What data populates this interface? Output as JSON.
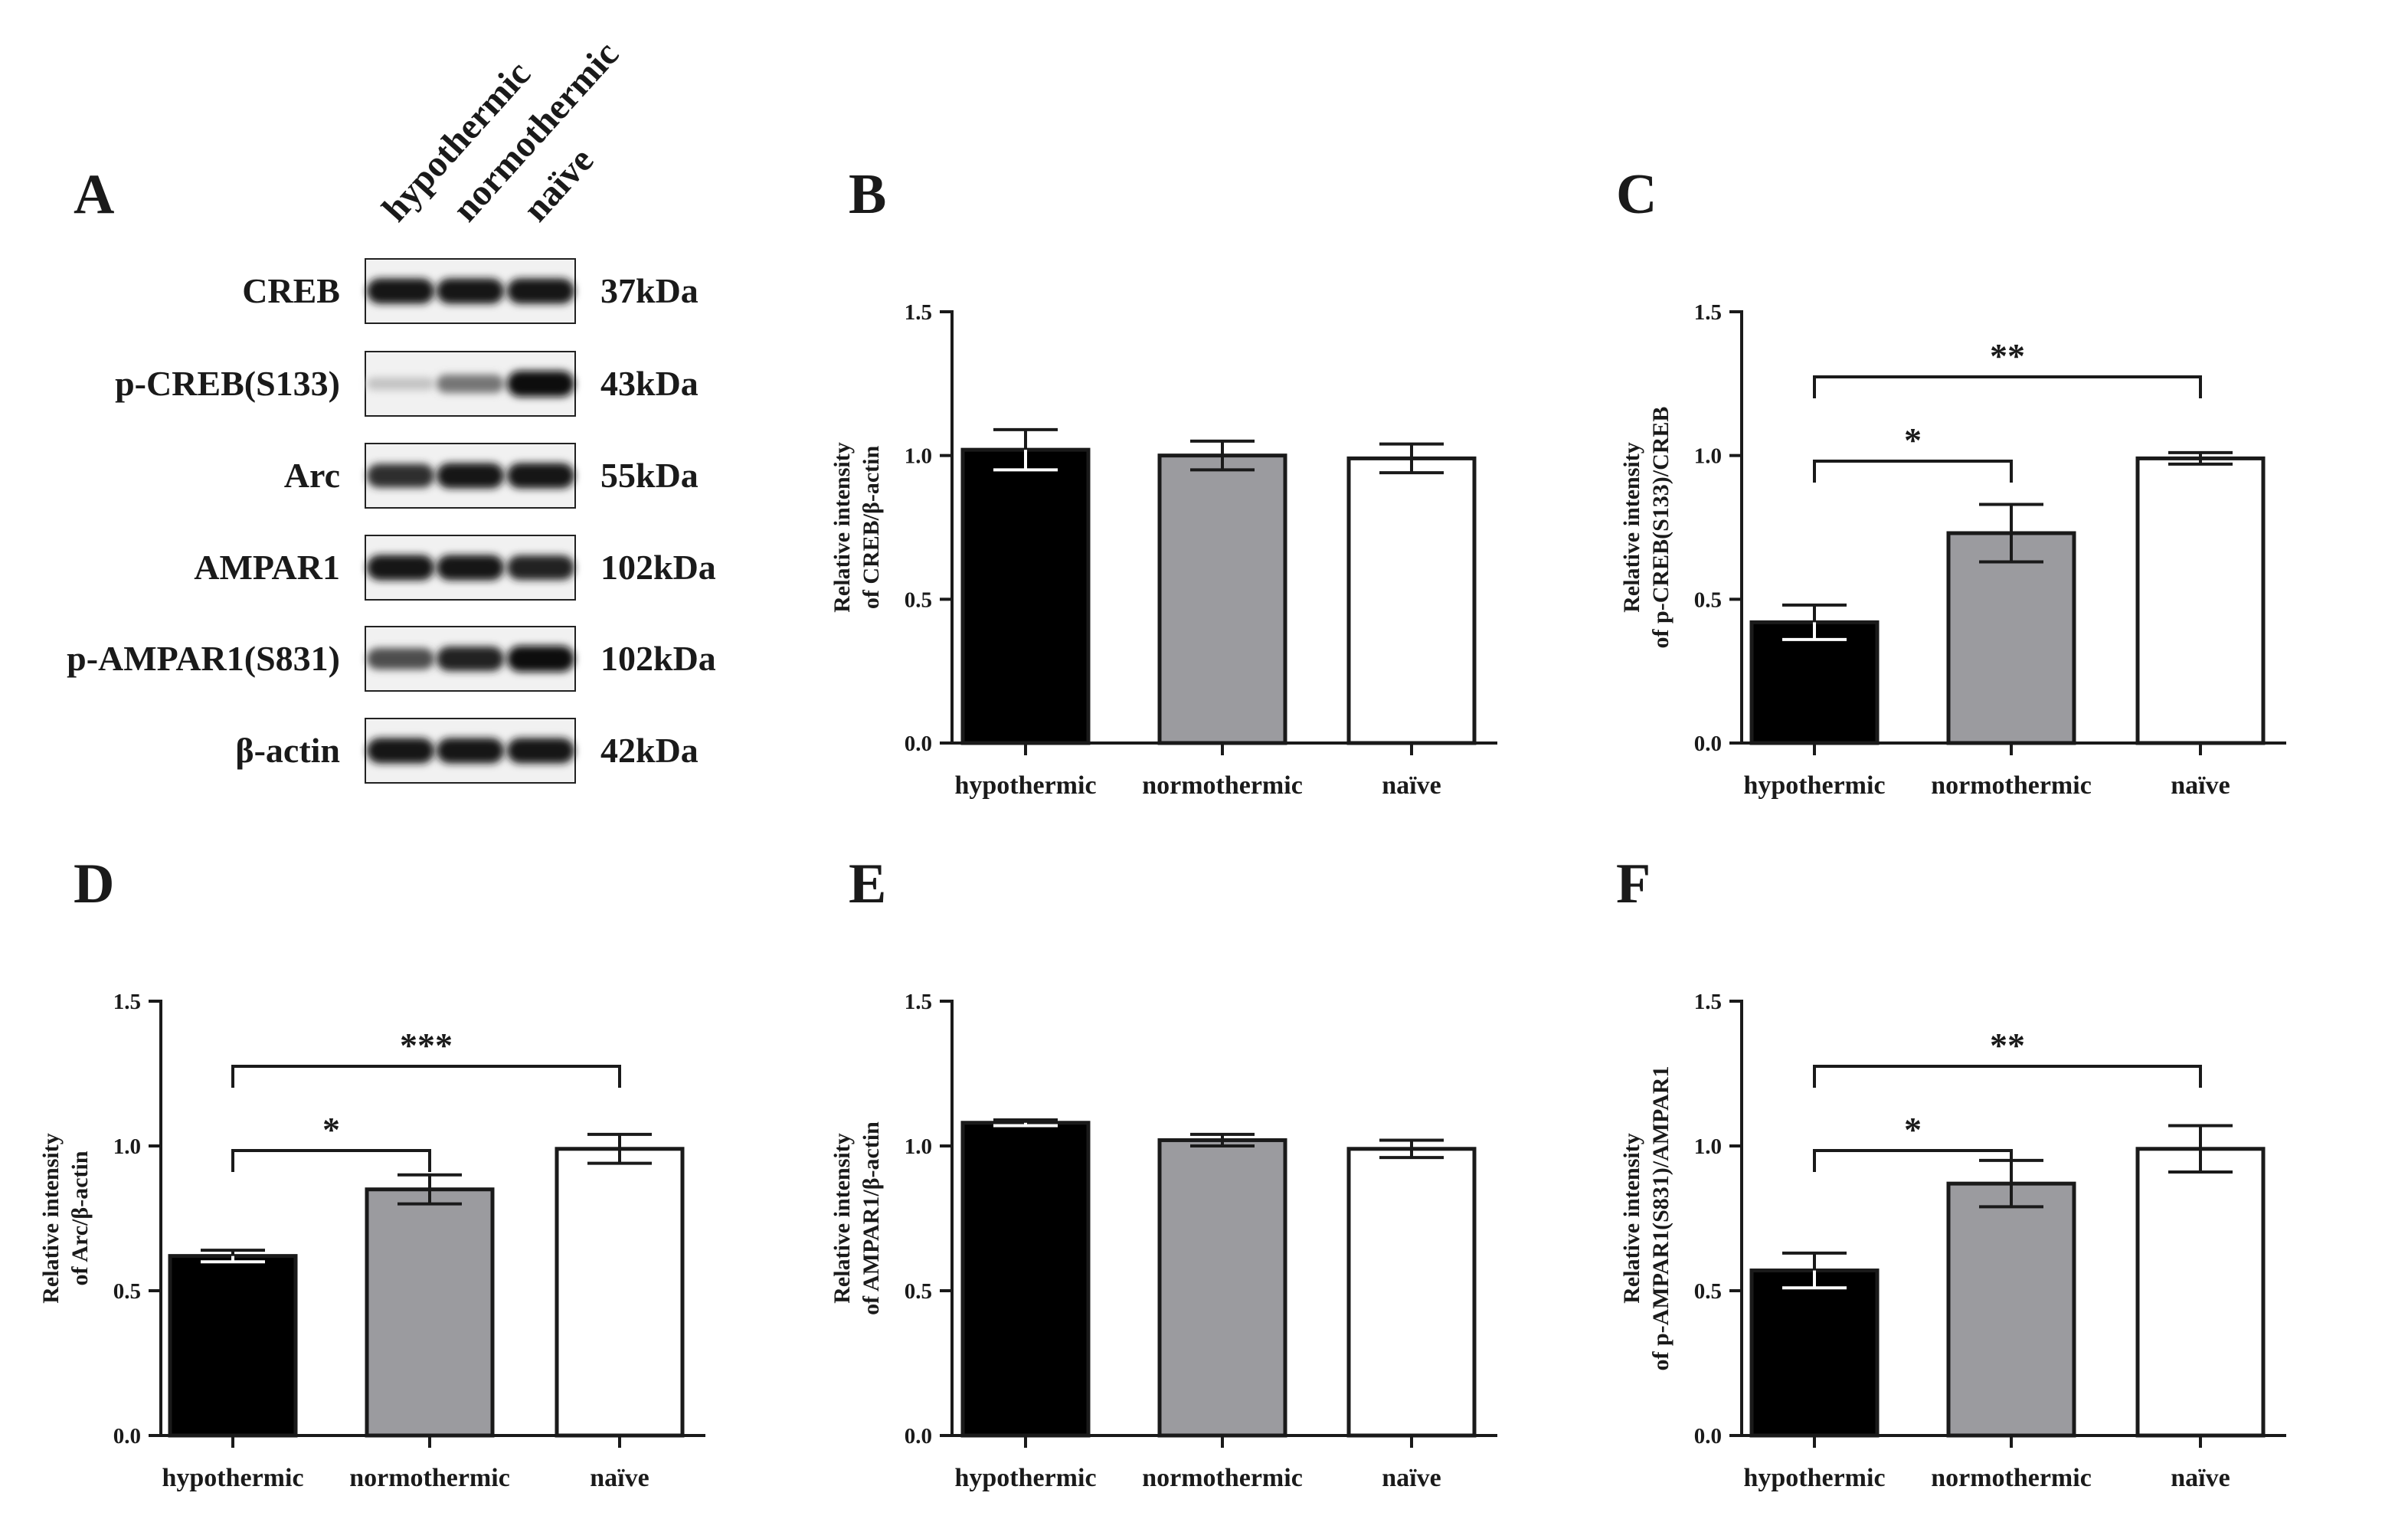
{
  "figure": {
    "panel_letters": [
      "A",
      "B",
      "C",
      "D",
      "E",
      "F"
    ]
  },
  "blot": {
    "lanes": [
      "hypothermic",
      "normothermic",
      "naïve"
    ],
    "rows": [
      {
        "protein": "CREB",
        "kda": "37kDa",
        "intensity": [
          0.95,
          0.95,
          0.95
        ]
      },
      {
        "protein": "p-CREB(S133)",
        "kda": "43kDa",
        "intensity": [
          0.12,
          0.5,
          1.0
        ]
      },
      {
        "protein": "Arc",
        "kda": "55kDa",
        "intensity": [
          0.85,
          0.95,
          0.95
        ]
      },
      {
        "protein": "AMPAR1",
        "kda": "102kDa",
        "intensity": [
          0.95,
          0.95,
          0.9
        ]
      },
      {
        "protein": "p-AMPAR1(S831)",
        "kda": "102kDa",
        "intensity": [
          0.7,
          0.9,
          1.0
        ]
      },
      {
        "protein": "β-actin",
        "kda": "42kDa",
        "intensity": [
          0.95,
          0.95,
          0.95
        ]
      }
    ]
  },
  "colors": {
    "hypothermic": "#000000",
    "normothermic": "#9b9b9f",
    "naive": "#ffffff",
    "axis": "#1a1a1a"
  },
  "chart_data": [
    {
      "panel": "B",
      "type": "bar",
      "categories": [
        "hypothermic",
        "normothermic",
        "naïve"
      ],
      "values": [
        1.02,
        1.0,
        0.99
      ],
      "errors": [
        0.07,
        0.05,
        0.05
      ],
      "ylabel": [
        "Relative intensity",
        "of CREB/β-actin"
      ],
      "ylim": [
        0.0,
        1.5
      ],
      "yticks": [
        "0.0",
        "0.5",
        "1.0",
        "1.5"
      ],
      "significance": []
    },
    {
      "panel": "C",
      "type": "bar",
      "categories": [
        "hypothermic",
        "normothermic",
        "naïve"
      ],
      "values": [
        0.42,
        0.73,
        0.99
      ],
      "errors": [
        0.06,
        0.1,
        0.02
      ],
      "ylabel": [
        "Relative intensity",
        "of p-CREB(S133)/CREB"
      ],
      "ylim": [
        0.0,
        1.5
      ],
      "yticks": [
        "0.0",
        "0.5",
        "1.0",
        "1.5"
      ],
      "significance": [
        {
          "from": 0,
          "to": 1,
          "label": "*"
        },
        {
          "from": 0,
          "to": 2,
          "label": "**"
        }
      ]
    },
    {
      "panel": "D",
      "type": "bar",
      "categories": [
        "hypothermic",
        "normothermic",
        "naïve"
      ],
      "values": [
        0.62,
        0.85,
        0.99
      ],
      "errors": [
        0.02,
        0.05,
        0.05
      ],
      "ylabel": [
        "Relative intensity",
        "of Arc/β-actin"
      ],
      "ylim": [
        0.0,
        1.5
      ],
      "yticks": [
        "0.0",
        "0.5",
        "1.0",
        "1.5"
      ],
      "significance": [
        {
          "from": 0,
          "to": 1,
          "label": "*"
        },
        {
          "from": 0,
          "to": 2,
          "label": "***"
        }
      ]
    },
    {
      "panel": "E",
      "type": "bar",
      "categories": [
        "hypothermic",
        "normothermic",
        "naïve"
      ],
      "values": [
        1.08,
        1.02,
        0.99
      ],
      "errors": [
        0.01,
        0.02,
        0.03
      ],
      "ylabel": [
        "Relative intensity",
        "of AMPAR1/β-actin"
      ],
      "ylim": [
        0.0,
        1.5
      ],
      "yticks": [
        "0.0",
        "0.5",
        "1.0",
        "1.5"
      ],
      "significance": []
    },
    {
      "panel": "F",
      "type": "bar",
      "categories": [
        "hypothermic",
        "normothermic",
        "naïve"
      ],
      "values": [
        0.57,
        0.87,
        0.99
      ],
      "errors": [
        0.06,
        0.08,
        0.08
      ],
      "ylabel": [
        "Relative intensity",
        "of p-AMPAR1(S831)/AMPAR1"
      ],
      "ylim": [
        0.0,
        1.5
      ],
      "yticks": [
        "0.0",
        "0.5",
        "1.0",
        "1.5"
      ],
      "significance": [
        {
          "from": 0,
          "to": 1,
          "label": "*"
        },
        {
          "from": 0,
          "to": 2,
          "label": "**"
        }
      ]
    }
  ]
}
